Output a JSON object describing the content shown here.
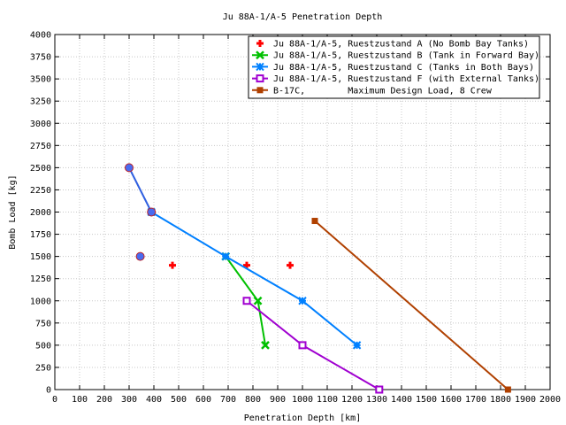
{
  "chart_data": {
    "type": "line",
    "title": "Ju 88A-1/A-5 Penetration Depth",
    "xlabel": "Penetration Depth [km]",
    "ylabel": "Bomb Load [kg]",
    "xlim": [
      0,
      2000
    ],
    "ylim": [
      0,
      4000
    ],
    "x_ticks": [
      0,
      100,
      200,
      300,
      400,
      500,
      600,
      700,
      800,
      900,
      1000,
      1100,
      1200,
      1300,
      1400,
      1500,
      1600,
      1700,
      1800,
      1900,
      2000
    ],
    "y_ticks": [
      0,
      250,
      500,
      750,
      1000,
      1250,
      1500,
      1750,
      2000,
      2250,
      2500,
      2750,
      3000,
      3250,
      3500,
      3750,
      4000
    ],
    "grid": true,
    "legend_position": "top-right",
    "series": [
      {
        "name": "Ju 88A-1/A-5, Ruestzustand A (No Bomb Bay Tanks)",
        "color": "#ff0000",
        "marker": "plus",
        "line": false,
        "points": [
          [
            475,
            1400
          ],
          [
            775,
            1400
          ],
          [
            950,
            1400
          ]
        ]
      },
      {
        "name": "Ju 88A-1/A-5, Ruestzustand B (Tank in Forward Bay)",
        "color": "#00c000",
        "marker": "x",
        "line": true,
        "points": [
          [
            690,
            1500
          ],
          [
            820,
            1000
          ],
          [
            850,
            500
          ]
        ]
      },
      {
        "name": "Ju 88A-1/A-5, Ruestzustand C (Tanks in Both Bays)",
        "color": "#0080ff",
        "marker": "star",
        "line": true,
        "points": [
          [
            390,
            2000
          ],
          [
            690,
            1500
          ],
          [
            1000,
            1000
          ],
          [
            1220,
            500
          ]
        ]
      },
      {
        "name": "Ju 88A-1/A-5, Ruestzustand F (with External Tanks)",
        "color": "#a000d0",
        "marker": "square-open",
        "line": true,
        "points": [
          [
            775,
            1000
          ],
          [
            1000,
            500
          ],
          [
            1310,
            0
          ]
        ]
      },
      {
        "name": "B-17C,        Maximum Design Load, 8 Crew",
        "color": "#b04000",
        "marker": "square",
        "line": true,
        "points": [
          [
            1050,
            1900
          ],
          [
            1830,
            0
          ]
        ]
      },
      {
        "name": "",
        "color": "#3060e0",
        "marker": "circle",
        "line": true,
        "points": [
          [
            300,
            2500
          ],
          [
            390,
            2000
          ]
        ]
      },
      {
        "name": "",
        "color": "#3060e0",
        "marker": "circle",
        "line": false,
        "points": [
          [
            345,
            1500
          ]
        ]
      }
    ]
  }
}
